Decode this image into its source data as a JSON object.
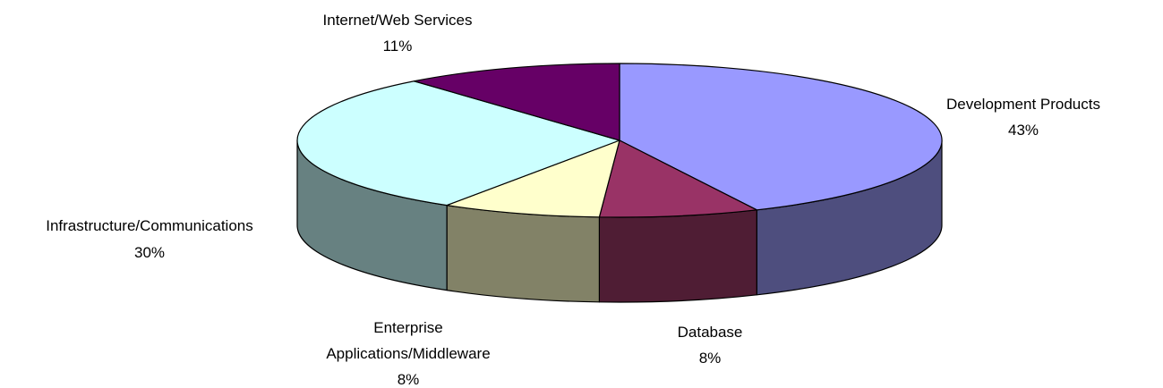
{
  "chart_data": {
    "type": "pie",
    "style": "3d",
    "title": "",
    "slices": [
      {
        "label": "Development Products",
        "value": 43,
        "value_label": "43%",
        "top_color": "#9999ff",
        "side_color": "#4e4e7e"
      },
      {
        "label": "Database",
        "value": 8,
        "value_label": "8%",
        "top_color": "#993366",
        "side_color": "#4f1d34"
      },
      {
        "label": "Enterprise Applications/Middleware",
        "label_lines": [
          "Enterprise",
          "Applications/Middleware"
        ],
        "value": 8,
        "value_label": "8%",
        "top_color": "#ffffcc",
        "side_color": "#828267"
      },
      {
        "label": "Infrastructure/Communications",
        "value": 30,
        "value_label": "30%",
        "top_color": "#ccffff",
        "side_color": "#678181"
      },
      {
        "label": "Internet/Web Services",
        "value": 11,
        "value_label": "11%",
        "top_color": "#660066",
        "side_color": "#330033"
      }
    ]
  }
}
